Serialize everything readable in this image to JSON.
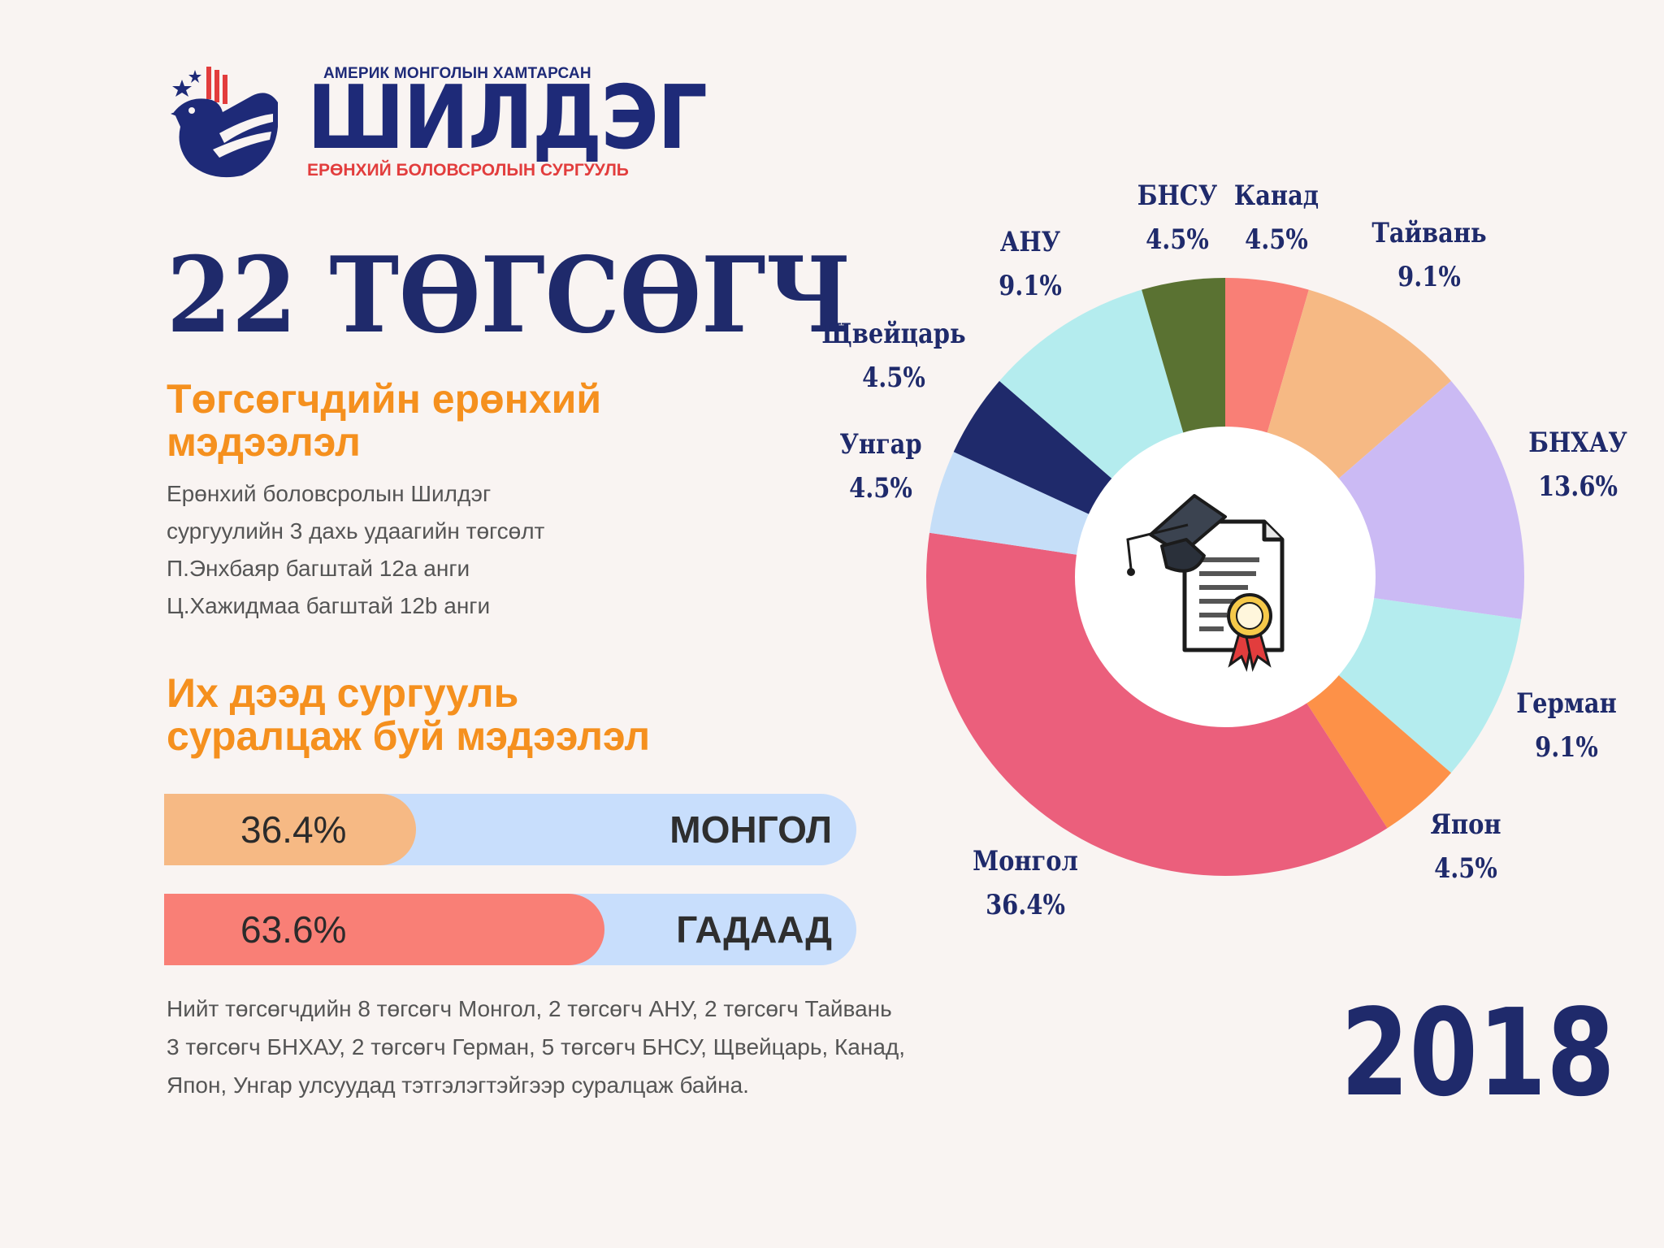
{
  "logo": {
    "top_text": "АМЕРИК МОНГОЛЫН ХАМТАРСАН",
    "name": "ШИЛДЭГ",
    "bottom_text": "ЕРӨНХИЙ БОЛОВСРОЛЫН СУРГУУЛЬ"
  },
  "headline": "22 ТӨГСӨГЧ",
  "section1": {
    "title_lines": [
      "Төгсөгчдийн ерөнхий",
      "мэдээлэл"
    ],
    "lines": [
      "Ерөнхий боловсролын Шилдэг",
      "сургуулийн 3 дахь удаагийн төгсөлт",
      "П.Энхбаяр багштай 12а анги",
      "Ц.Хажидмаа багштай 12b анги"
    ]
  },
  "section2": {
    "title_lines": [
      "Их дээд сургууль",
      "суралцаж буй мэдээлэл"
    ]
  },
  "bars": [
    {
      "percent_text": "36.4%",
      "value": 36.4,
      "label": "МОНГОЛ",
      "color": "#f6b984"
    },
    {
      "percent_text": "63.6%",
      "value": 63.6,
      "label": "ГАДААД",
      "color": "#f97f76"
    }
  ],
  "bar_track_color": "#c8defc",
  "note_lines": [
    "Нийт төгсөгчдийн 8 төгсөгч Монгол, 2 төгсөгч АНУ, 2 төгсөгч Тайвань",
    "3 төгсөгч БНХАУ, 2 төгсөгч Герман, 5 төгсөгч БНСУ, Щвейцарь, Канад,",
    "Япон, Унгар улсуудад тэтгэлэгтэйгээр суралцаж байна."
  ],
  "year": "2018",
  "center_icon": "graduation-cap-diploma-icon",
  "chart_data": {
    "type": "pie",
    "donut": true,
    "start": "12 o'clock, clockwise",
    "slices": [
      {
        "name": "Канад",
        "value": 4.5,
        "label": "4.5%",
        "color": "#f97f76"
      },
      {
        "name": "Тайвань",
        "value": 9.1,
        "label": "9.1%",
        "color": "#f6b984"
      },
      {
        "name": "БНХАУ",
        "value": 13.6,
        "label": "13.6%",
        "color": "#cbbaf4"
      },
      {
        "name": "Герман",
        "value": 9.1,
        "label": "9.1%",
        "color": "#b4ecee"
      },
      {
        "name": "Япон",
        "value": 4.5,
        "label": "4.5%",
        "color": "#fd9148"
      },
      {
        "name": "Монгол",
        "value": 36.4,
        "label": "36.4%",
        "color": "#eb5f7c"
      },
      {
        "name": "Унгар",
        "value": 4.5,
        "label": "4.5%",
        "color": "#c5def8"
      },
      {
        "name": "Щвейцарь",
        "value": 4.5,
        "label": "4.5%",
        "color": "#1f2a6b"
      },
      {
        "name": "АНУ",
        "value": 9.1,
        "label": "9.1%",
        "color": "#b4ecee"
      },
      {
        "name": "БНСУ",
        "value": 4.5,
        "label": "4.5%",
        "color": "#5a7232"
      }
    ]
  }
}
